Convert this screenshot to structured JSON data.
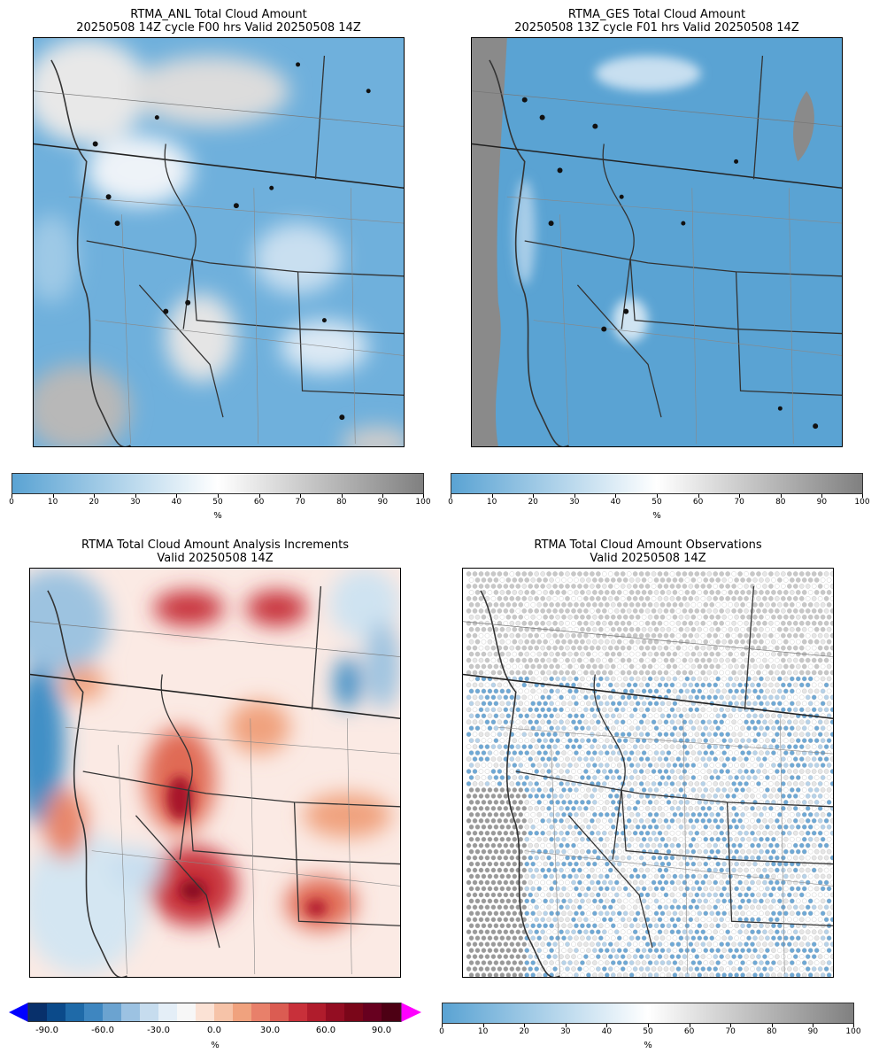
{
  "panels": [
    {
      "title_line1": "RTMA_ANL Total Cloud Amount",
      "title_line2": "20250508 14Z cycle F00 hrs Valid 20250508 14Z"
    },
    {
      "title_line1": "RTMA_GES Total Cloud Amount",
      "title_line2": "20250508 13Z cycle F01 hrs Valid 20250508 14Z"
    },
    {
      "title_line1": "RTMA Total Cloud Amount Analysis Increments",
      "title_line2": "Valid 20250508 14Z"
    },
    {
      "title_line1": "RTMA Total Cloud Amount Observations",
      "title_line2": "Valid 20250508 14Z"
    }
  ],
  "colorbars": {
    "cloud": {
      "ticks": [
        "0",
        "10",
        "20",
        "30",
        "40",
        "50",
        "60",
        "70",
        "80",
        "90",
        "100"
      ],
      "unit": "%",
      "colors": [
        "#5aa3d3",
        "#ffffff",
        "#808080"
      ]
    },
    "increment": {
      "ticks": [
        "-90.0",
        "-60.0",
        "-30.0",
        "0.0",
        "30.0",
        "60.0",
        "90.0"
      ],
      "unit": "%",
      "under_color": "#0000ff",
      "over_color": "#ff00ff"
    }
  },
  "chart_data": [
    {
      "type": "heatmap",
      "title": "RTMA_ANL Total Cloud Amount",
      "subtitle": "20250508 14Z cycle F00 hrs Valid 20250508 14Z",
      "colorbar_range": [
        0,
        100
      ],
      "unit": "%"
    },
    {
      "type": "heatmap",
      "title": "RTMA_GES Total Cloud Amount",
      "subtitle": "20250508 13Z cycle F01 hrs Valid 20250508 14Z",
      "colorbar_range": [
        0,
        100
      ],
      "unit": "%"
    },
    {
      "type": "heatmap",
      "title": "RTMA Total Cloud Amount Analysis Increments",
      "subtitle": "Valid 20250508 14Z",
      "colorbar_range": [
        -100,
        100
      ],
      "unit": "%"
    },
    {
      "type": "scatter",
      "title": "RTMA Total Cloud Amount Observations",
      "subtitle": "Valid 20250508 14Z",
      "colorbar_range": [
        0,
        100
      ],
      "unit": "%"
    }
  ]
}
